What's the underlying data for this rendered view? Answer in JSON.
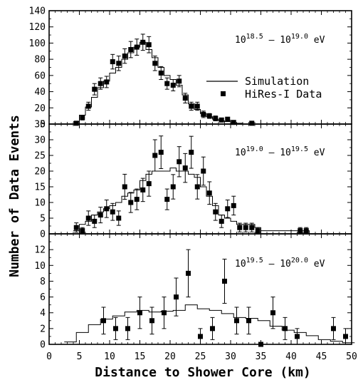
{
  "chart_data": {
    "type": "scatter",
    "x_label": "Distance to Shower Core (km)",
    "y_label": "Number of Data Events",
    "x_range": [
      0,
      50
    ],
    "x_ticks": [
      0,
      5,
      10,
      15,
      20,
      25,
      30,
      35,
      40,
      45,
      50
    ],
    "legend": {
      "placement": "top-panel-right",
      "line_label": "Simulation",
      "marker_label": "HiRes-I Data"
    },
    "panels": [
      {
        "energy_base": "10",
        "energy_low": "18.5",
        "energy_high": "19.0",
        "energy_unit": "eV",
        "ylim": [
          0,
          140
        ],
        "yticks": [
          0,
          20,
          40,
          60,
          80,
          100,
          120,
          140
        ],
        "data": {
          "x": [
            4.5,
            5.5,
            6.5,
            7.5,
            8.5,
            9.5,
            10.5,
            11.5,
            12.5,
            13.5,
            14.5,
            15.5,
            16.5,
            17.5,
            18.5,
            19.5,
            20.5,
            21.5,
            22.5,
            23.5,
            24.5,
            25.5,
            26.5,
            27.5,
            28.5,
            29.5,
            30.5,
            33.5
          ],
          "y": [
            1,
            8,
            22,
            43,
            50,
            52,
            77,
            75,
            84,
            92,
            95,
            101,
            98,
            75,
            63,
            50,
            48,
            53,
            32,
            22,
            22,
            12,
            10,
            7,
            5,
            6,
            2,
            1
          ],
          "err": [
            0,
            3,
            5,
            7,
            7,
            7,
            9,
            9,
            9,
            10,
            10,
            10,
            10,
            9,
            8,
            7,
            7,
            7,
            6,
            5,
            5,
            4,
            3,
            3,
            2,
            2,
            1,
            0
          ]
        },
        "simulation": {
          "x": [
            4.5,
            5.5,
            6.5,
            7.5,
            8.5,
            9.5,
            10.5,
            11.5,
            12.5,
            13.5,
            14.5,
            15.5,
            16.5,
            17.5,
            18.5,
            19.5,
            20.5,
            21.5,
            22.5,
            23.5,
            24.5,
            25.5,
            26.5,
            27.5,
            28.5,
            29.5,
            30.5,
            31.5,
            32.5,
            33.5
          ],
          "y": [
            3,
            11,
            21,
            33,
            45,
            53,
            63,
            70,
            80,
            88,
            95,
            101,
            92,
            82,
            70,
            60,
            55,
            48,
            36,
            25,
            18,
            13,
            9,
            6,
            4,
            3,
            1,
            1,
            0,
            0
          ]
        }
      },
      {
        "energy_base": "10",
        "energy_low": "19.0",
        "energy_high": "19.5",
        "energy_unit": "eV",
        "ylim": [
          0,
          35
        ],
        "yticks": [
          0,
          5,
          10,
          15,
          20,
          25,
          30,
          35
        ],
        "data": {
          "x": [
            4.5,
            5.5,
            6.5,
            7.5,
            8.5,
            9.5,
            10.5,
            11.5,
            12.5,
            13.5,
            14.5,
            15.5,
            16.5,
            17.5,
            18.5,
            19.5,
            20.5,
            21.5,
            22.5,
            23.5,
            24.5,
            25.5,
            26.5,
            27.5,
            28.5,
            29.5,
            30.5,
            31.5,
            32.5,
            33.5,
            34.5,
            41.5,
            42.5
          ],
          "y": [
            2,
            1,
            5,
            4,
            6,
            8,
            7,
            5,
            15,
            10,
            11,
            14,
            16,
            25,
            26,
            11,
            15,
            23,
            21,
            26,
            15,
            20,
            13,
            7,
            4,
            8,
            9,
            2,
            2,
            2,
            1,
            1,
            1
          ],
          "err": [
            1.5,
            1,
            2.3,
            2,
            2.5,
            2.8,
            2.7,
            2.3,
            4,
            3.2,
            3.3,
            3.7,
            4,
            5,
            5.2,
            3.3,
            3.9,
            4.8,
            4.6,
            5.1,
            3.9,
            4.5,
            3.6,
            2.7,
            2,
            2.8,
            3,
            1.4,
            1.4,
            1.4,
            1,
            1,
            1
          ]
        },
        "simulation": {
          "x": [
            4.5,
            5.5,
            6.5,
            7.5,
            8.5,
            9.5,
            10.5,
            11.5,
            12.5,
            13.5,
            14.5,
            15.5,
            16.5,
            17.5,
            18.5,
            19.5,
            20.5,
            21.5,
            22.5,
            23.5,
            24.5,
            25.5,
            26.5,
            27.5,
            28.5,
            29.5,
            30.5,
            31.5,
            32.5,
            33.5,
            34.5,
            35.5,
            36.5,
            37.5,
            38.5,
            39.5,
            40.5,
            41.5,
            42.5,
            43.5,
            44.5,
            45.5,
            46.5,
            47.5,
            48.5
          ],
          "y": [
            1,
            3,
            4,
            6,
            7,
            8,
            9,
            10,
            12,
            13,
            14,
            17,
            19,
            20,
            20,
            20,
            21,
            20,
            20,
            19,
            18,
            15,
            12,
            9,
            6,
            5,
            4,
            3,
            3,
            3,
            2,
            1,
            1,
            1,
            1,
            1,
            1,
            1,
            1,
            0,
            0,
            0,
            0,
            0,
            0
          ]
        }
      },
      {
        "energy_base": "10",
        "energy_low": "19.5",
        "energy_high": "20.0",
        "energy_unit": "eV",
        "ylim": [
          0,
          14
        ],
        "yticks": [
          0,
          2,
          4,
          6,
          8,
          10,
          12
        ],
        "data": {
          "x": [
            9,
            11,
            13,
            15,
            17,
            19,
            21,
            23,
            25,
            27,
            29,
            31,
            33,
            35,
            37,
            39,
            41,
            47,
            49
          ],
          "y": [
            3,
            2,
            2,
            4,
            3,
            4,
            6,
            9,
            1,
            2,
            8,
            3,
            3,
            0,
            4,
            2,
            1,
            2,
            1
          ],
          "err": [
            1.7,
            1.4,
            1.4,
            2,
            1.7,
            2,
            2.4,
            3,
            1,
            1.4,
            2.8,
            1.7,
            1.7,
            0,
            2,
            1.4,
            1,
            1.4,
            1
          ]
        },
        "simulation": {
          "x": [
            3.5,
            5.5,
            7.5,
            9.5,
            11.5,
            13.5,
            15.5,
            17.5,
            19.5,
            21.5,
            23.5,
            25.5,
            27.5,
            29.5,
            31.5,
            33.5,
            35.5,
            37.5,
            39.5,
            41.5,
            43.5,
            45.5,
            47.5,
            49.5
          ],
          "y": [
            0.3,
            1.5,
            2.5,
            3.2,
            3.6,
            4.1,
            4.3,
            4.1,
            4.2,
            4.3,
            5.0,
            4.5,
            4.3,
            3.9,
            3.4,
            3.3,
            3.0,
            2.3,
            1.8,
            1.5,
            1.1,
            0.6,
            0.4,
            0.2
          ]
        }
      }
    ]
  }
}
